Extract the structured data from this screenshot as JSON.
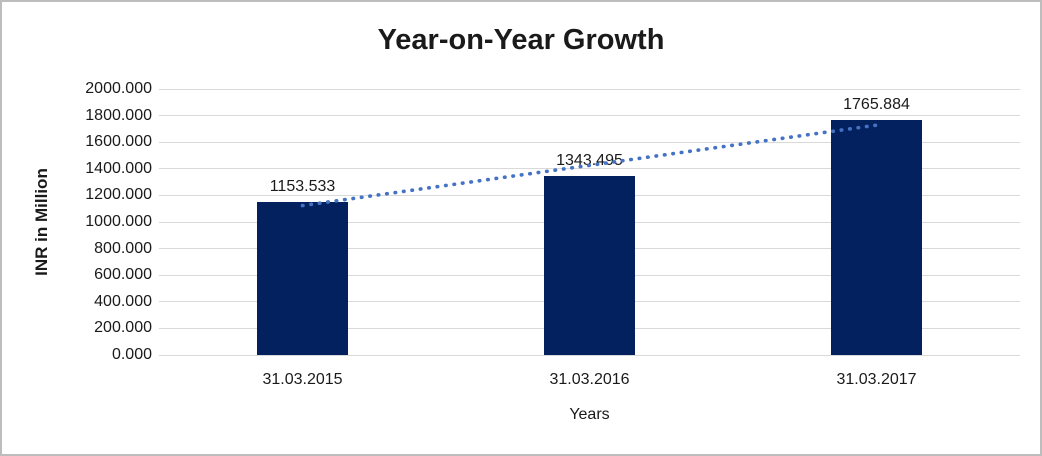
{
  "chart_data": {
    "type": "bar",
    "title": "Year-on-Year Growth",
    "xlabel": "Years",
    "ylabel": "INR in Million",
    "categories": [
      "31.03.2015",
      "31.03.2016",
      "31.03.2017"
    ],
    "values": [
      1153.533,
      1343.495,
      1765.884
    ],
    "data_labels": [
      "1153.533",
      "1343.495",
      "1765.884"
    ],
    "ylim": [
      0,
      2000
    ],
    "ytick_step": 200,
    "ytick_labels": [
      "0.000",
      "200.000",
      "400.000",
      "600.000",
      "800.000",
      "1000.000",
      "1200.000",
      "1400.000",
      "1600.000",
      "1800.000",
      "2000.000"
    ],
    "grid": true,
    "legend_position": "none",
    "trendline": {
      "style": "dotted",
      "from_category": "31.03.2015",
      "to_category": "31.03.2017"
    },
    "colors": {
      "bar": "#02215E",
      "trendline": "#4472C4",
      "gridline": "#D9D9D9",
      "text": "#1A1A1A",
      "frame_border": "#BDBDBD",
      "background": "#FFFFFF"
    }
  }
}
